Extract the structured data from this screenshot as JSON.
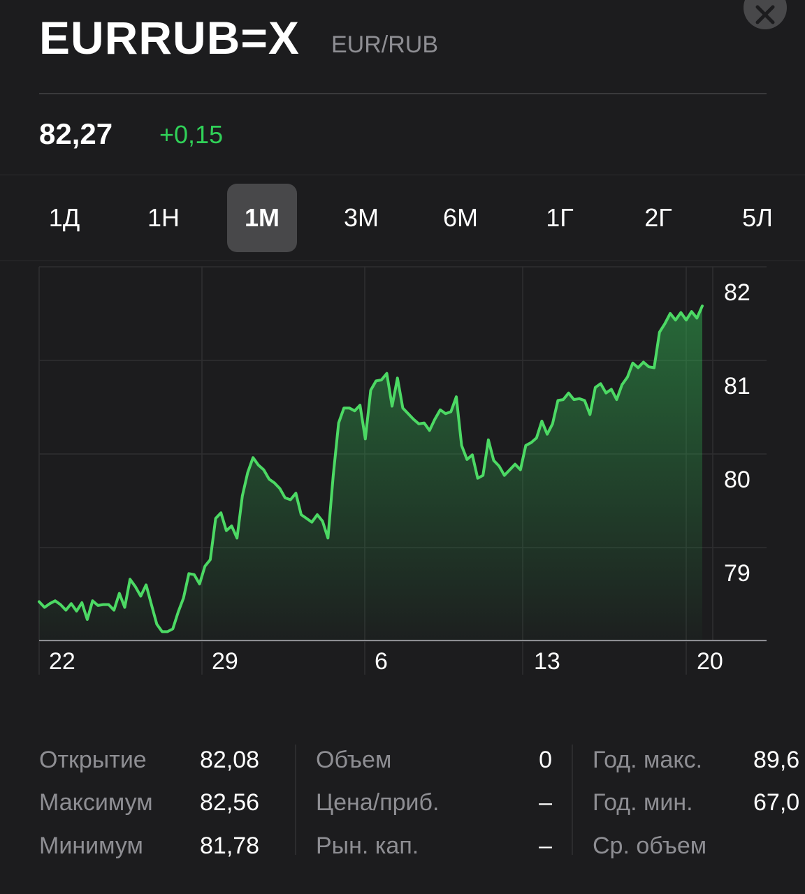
{
  "header": {
    "symbol": "EURRUB=X",
    "pair": "EUR/RUB",
    "close_icon": "close-icon"
  },
  "quote": {
    "price": "82,27",
    "change": "+0,15",
    "change_color": "#30d158"
  },
  "ranges": [
    {
      "label": "1Д",
      "active": false
    },
    {
      "label": "1Н",
      "active": false
    },
    {
      "label": "1М",
      "active": true
    },
    {
      "label": "3М",
      "active": false
    },
    {
      "label": "6М",
      "active": false
    },
    {
      "label": "1Г",
      "active": false
    },
    {
      "label": "2Г",
      "active": false
    },
    {
      "label": "5Л",
      "active": false
    }
  ],
  "chart_data": {
    "type": "area",
    "title": "",
    "xlabel": "",
    "ylabel": "",
    "x_ticks": [
      "22",
      "29",
      "6",
      "13",
      "20"
    ],
    "y_ticks": [
      "82",
      "81",
      "80",
      "79"
    ],
    "ylim": [
      78.25,
      82.25
    ],
    "grid": true,
    "line_color": "#4cd964",
    "series": [
      {
        "values": [
          78.69,
          78.63,
          78.67,
          78.7,
          78.66,
          78.6,
          78.67,
          78.59,
          78.68,
          78.5,
          78.7,
          78.65,
          78.66,
          78.66,
          78.6,
          78.78,
          78.63,
          78.93,
          78.85,
          78.75,
          78.87,
          78.66,
          78.45,
          78.37,
          78.37,
          78.4,
          78.58,
          78.73,
          78.99,
          78.98,
          78.88,
          79.07,
          79.14,
          79.58,
          79.64,
          79.45,
          79.5,
          79.37,
          79.82,
          80.07,
          80.23,
          80.15,
          80.1,
          80.0,
          79.96,
          79.9,
          79.8,
          79.78,
          79.85,
          79.62,
          79.58,
          79.54,
          79.62,
          79.55,
          79.37,
          80.04,
          80.6,
          80.76,
          80.76,
          80.73,
          80.79,
          80.43,
          80.95,
          81.05,
          81.06,
          81.13,
          80.78,
          81.08,
          80.76,
          80.7,
          80.64,
          80.59,
          80.6,
          80.52,
          80.64,
          80.74,
          80.7,
          80.72,
          80.88,
          80.36,
          80.21,
          80.26,
          80.01,
          80.04,
          80.42,
          80.2,
          80.14,
          80.04,
          80.1,
          80.16,
          80.1,
          80.36,
          80.39,
          80.44,
          80.62,
          80.48,
          80.59,
          80.84,
          80.85,
          80.92,
          80.85,
          80.86,
          80.84,
          80.69,
          80.98,
          81.02,
          80.92,
          80.96,
          80.85,
          81.01,
          81.09,
          81.24,
          81.19,
          81.25,
          81.2,
          81.19,
          81.57,
          81.66,
          81.77,
          81.7,
          81.78,
          81.7,
          81.79,
          81.72,
          81.85
        ]
      }
    ]
  },
  "stats": {
    "col1": [
      {
        "label": "Открытие",
        "value": "82,08"
      },
      {
        "label": "Максимум",
        "value": "82,56"
      },
      {
        "label": "Минимум",
        "value": "81,78"
      }
    ],
    "col2": [
      {
        "label": "Объем",
        "value": "0"
      },
      {
        "label": "Цена/приб.",
        "value": "–"
      },
      {
        "label": "Рын. кап.",
        "value": "–"
      }
    ],
    "col3": [
      {
        "label": "Год. макс.",
        "value": "89,6"
      },
      {
        "label": "Год. мин.",
        "value": "67,0"
      },
      {
        "label": "Ср. объем",
        "value": ""
      }
    ]
  }
}
